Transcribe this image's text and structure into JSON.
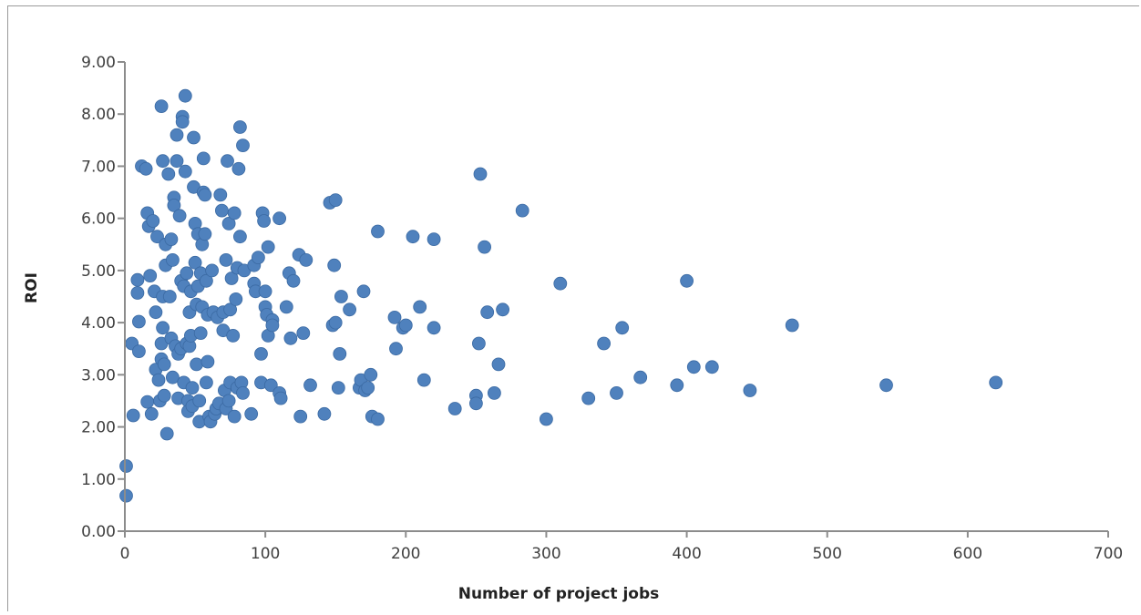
{
  "chart_data": {
    "type": "scatter",
    "title": "",
    "xlabel": "Number of project jobs",
    "ylabel": "ROI",
    "xlim": [
      0,
      700
    ],
    "ylim": [
      0,
      9
    ],
    "x_ticks": [
      "0",
      "100",
      "200",
      "300",
      "400",
      "500",
      "600",
      "700"
    ],
    "y_ticks": [
      "0.00",
      "1.00",
      "2.00",
      "3.00",
      "4.00",
      "5.00",
      "6.00",
      "7.00",
      "8.00",
      "9.00"
    ],
    "grid": false,
    "legend": "none",
    "marker_color": "#4f81bd",
    "points": [
      [
        1,
        1.25
      ],
      [
        1,
        0.68
      ],
      [
        5,
        3.6
      ],
      [
        6,
        2.22
      ],
      [
        9,
        4.57
      ],
      [
        9,
        4.82
      ],
      [
        10,
        4.02
      ],
      [
        10,
        3.45
      ],
      [
        12,
        7.0
      ],
      [
        15,
        6.95
      ],
      [
        16,
        2.48
      ],
      [
        16,
        6.1
      ],
      [
        17,
        5.85
      ],
      [
        18,
        4.9
      ],
      [
        19,
        2.25
      ],
      [
        20,
        5.95
      ],
      [
        21,
        4.6
      ],
      [
        22,
        4.2
      ],
      [
        22,
        3.1
      ],
      [
        23,
        5.65
      ],
      [
        24,
        2.9
      ],
      [
        25,
        2.5
      ],
      [
        26,
        3.6
      ],
      [
        26,
        3.3
      ],
      [
        26,
        8.15
      ],
      [
        27,
        7.1
      ],
      [
        27,
        4.5
      ],
      [
        27,
        3.9
      ],
      [
        28,
        3.2
      ],
      [
        28,
        2.6
      ],
      [
        29,
        5.1
      ],
      [
        29,
        5.5
      ],
      [
        30,
        1.87
      ],
      [
        31,
        6.85
      ],
      [
        32,
        4.5
      ],
      [
        33,
        5.6
      ],
      [
        33,
        3.7
      ],
      [
        34,
        5.2
      ],
      [
        34,
        2.95
      ],
      [
        35,
        6.4
      ],
      [
        35,
        6.25
      ],
      [
        36,
        3.55
      ],
      [
        37,
        7.1
      ],
      [
        37,
        7.6
      ],
      [
        38,
        2.55
      ],
      [
        38,
        3.4
      ],
      [
        39,
        6.05
      ],
      [
        40,
        3.5
      ],
      [
        40,
        4.8
      ],
      [
        41,
        7.95
      ],
      [
        41,
        7.85
      ],
      [
        42,
        2.85
      ],
      [
        42,
        4.7
      ],
      [
        43,
        6.9
      ],
      [
        43,
        8.35
      ],
      [
        44,
        4.95
      ],
      [
        44,
        3.6
      ],
      [
        45,
        2.5
      ],
      [
        45,
        2.3
      ],
      [
        46,
        4.2
      ],
      [
        46,
        3.55
      ],
      [
        47,
        4.6
      ],
      [
        47,
        3.75
      ],
      [
        48,
        2.75
      ],
      [
        48,
        2.4
      ],
      [
        49,
        7.55
      ],
      [
        49,
        6.6
      ],
      [
        50,
        5.9
      ],
      [
        50,
        5.15
      ],
      [
        51,
        4.35
      ],
      [
        51,
        3.2
      ],
      [
        52,
        5.7
      ],
      [
        52,
        4.7
      ],
      [
        53,
        2.5
      ],
      [
        53,
        2.1
      ],
      [
        54,
        4.95
      ],
      [
        54,
        3.8
      ],
      [
        55,
        5.5
      ],
      [
        55,
        4.3
      ],
      [
        56,
        7.15
      ],
      [
        56,
        6.5
      ],
      [
        57,
        6.45
      ],
      [
        57,
        5.7
      ],
      [
        58,
        4.8
      ],
      [
        58,
        2.85
      ],
      [
        59,
        4.15
      ],
      [
        59,
        3.25
      ],
      [
        60,
        2.2
      ],
      [
        61,
        2.1
      ],
      [
        62,
        5.0
      ],
      [
        63,
        4.2
      ],
      [
        64,
        2.25
      ],
      [
        65,
        2.35
      ],
      [
        66,
        4.1
      ],
      [
        67,
        2.45
      ],
      [
        68,
        6.45
      ],
      [
        69,
        6.15
      ],
      [
        70,
        4.2
      ],
      [
        70,
        3.85
      ],
      [
        71,
        2.7
      ],
      [
        72,
        5.2
      ],
      [
        72,
        2.35
      ],
      [
        73,
        7.1
      ],
      [
        74,
        5.9
      ],
      [
        74,
        2.5
      ],
      [
        75,
        4.25
      ],
      [
        75,
        2.85
      ],
      [
        76,
        4.85
      ],
      [
        77,
        3.75
      ],
      [
        78,
        6.1
      ],
      [
        78,
        2.2
      ],
      [
        79,
        4.45
      ],
      [
        80,
        2.75
      ],
      [
        80,
        5.05
      ],
      [
        81,
        6.95
      ],
      [
        82,
        7.75
      ],
      [
        82,
        5.65
      ],
      [
        83,
        2.85
      ],
      [
        84,
        7.4
      ],
      [
        84,
        2.65
      ],
      [
        85,
        5.0
      ],
      [
        90,
        2.25
      ],
      [
        92,
        5.1
      ],
      [
        92,
        4.75
      ],
      [
        93,
        4.6
      ],
      [
        95,
        5.25
      ],
      [
        97,
        3.4
      ],
      [
        97,
        2.85
      ],
      [
        98,
        6.1
      ],
      [
        99,
        5.95
      ],
      [
        100,
        4.3
      ],
      [
        100,
        4.6
      ],
      [
        101,
        4.15
      ],
      [
        102,
        5.45
      ],
      [
        102,
        3.75
      ],
      [
        104,
        2.8
      ],
      [
        105,
        4.05
      ],
      [
        105,
        3.95
      ],
      [
        110,
        2.65
      ],
      [
        110,
        6.0
      ],
      [
        111,
        2.55
      ],
      [
        115,
        4.3
      ],
      [
        117,
        4.95
      ],
      [
        118,
        3.7
      ],
      [
        120,
        4.8
      ],
      [
        124,
        5.3
      ],
      [
        125,
        2.2
      ],
      [
        127,
        3.8
      ],
      [
        129,
        5.2
      ],
      [
        132,
        2.8
      ],
      [
        142,
        2.25
      ],
      [
        146,
        6.3
      ],
      [
        148,
        3.95
      ],
      [
        149,
        5.1
      ],
      [
        150,
        6.35
      ],
      [
        150,
        4.0
      ],
      [
        152,
        2.75
      ],
      [
        153,
        3.4
      ],
      [
        154,
        4.5
      ],
      [
        160,
        4.25
      ],
      [
        167,
        2.75
      ],
      [
        168,
        2.9
      ],
      [
        170,
        4.6
      ],
      [
        171,
        2.7
      ],
      [
        173,
        2.75
      ],
      [
        175,
        3.0
      ],
      [
        176,
        2.2
      ],
      [
        180,
        2.15
      ],
      [
        180,
        5.75
      ],
      [
        192,
        4.1
      ],
      [
        193,
        3.5
      ],
      [
        198,
        3.9
      ],
      [
        200,
        3.95
      ],
      [
        205,
        5.65
      ],
      [
        210,
        4.3
      ],
      [
        213,
        2.9
      ],
      [
        220,
        5.6
      ],
      [
        220,
        3.9
      ],
      [
        235,
        2.35
      ],
      [
        250,
        2.6
      ],
      [
        250,
        2.45
      ],
      [
        252,
        3.6
      ],
      [
        253,
        6.85
      ],
      [
        256,
        5.45
      ],
      [
        258,
        4.2
      ],
      [
        263,
        2.65
      ],
      [
        266,
        3.2
      ],
      [
        269,
        4.25
      ],
      [
        283,
        6.15
      ],
      [
        300,
        2.15
      ],
      [
        310,
        4.75
      ],
      [
        330,
        2.55
      ],
      [
        341,
        3.6
      ],
      [
        350,
        2.65
      ],
      [
        354,
        3.9
      ],
      [
        367,
        2.95
      ],
      [
        393,
        2.8
      ],
      [
        400,
        4.8
      ],
      [
        405,
        3.15
      ],
      [
        418,
        3.15
      ],
      [
        445,
        2.7
      ],
      [
        475,
        3.95
      ],
      [
        542,
        2.8
      ],
      [
        620,
        2.85
      ]
    ]
  }
}
